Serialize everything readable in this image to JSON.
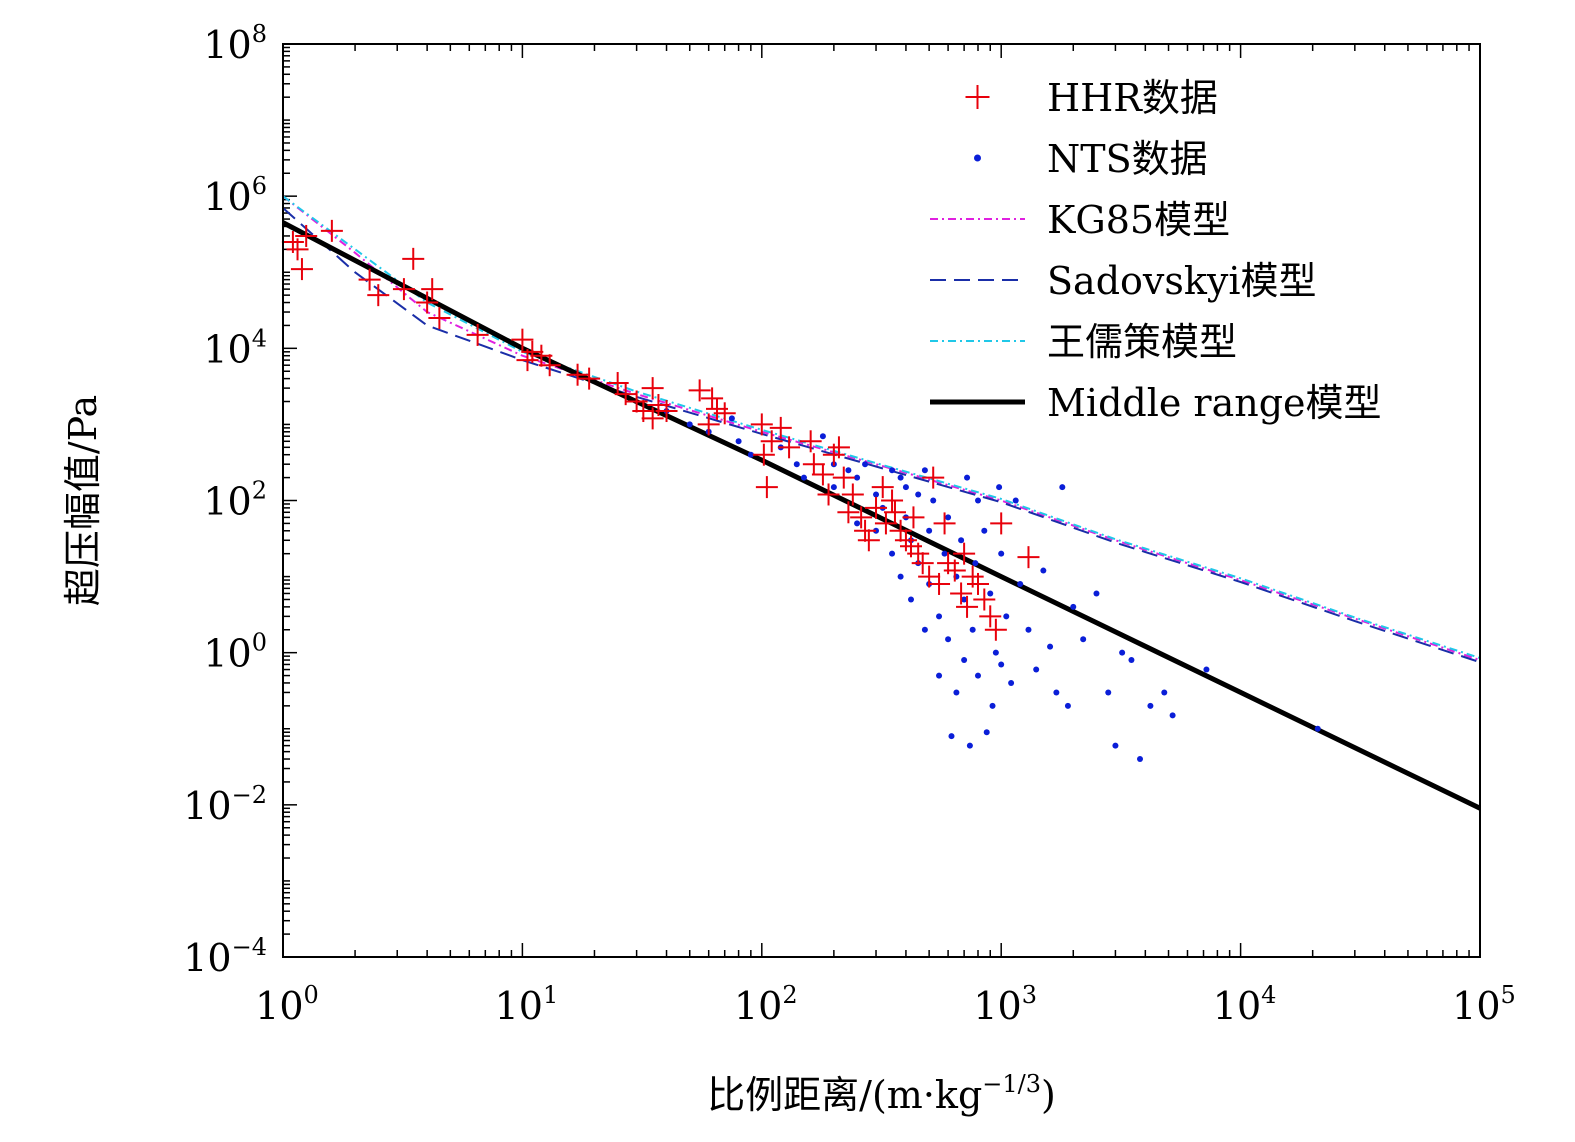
{
  "chart_data": {
    "type": "scatter",
    "xlabel": "比例距离/(m·kg",
    "xlabel_sup": "−1/3",
    "xlabel_tail": ")",
    "ylabel": "超压幅值/Pa",
    "x_scale": "log",
    "y_scale": "log",
    "xlim": [
      1,
      100000
    ],
    "ylim": [
      0.0001,
      100000000
    ],
    "x_ticks": [
      {
        "value": 1,
        "base": "10",
        "exp": "0"
      },
      {
        "value": 10,
        "base": "10",
        "exp": "1"
      },
      {
        "value": 100,
        "base": "10",
        "exp": "2"
      },
      {
        "value": 1000,
        "base": "10",
        "exp": "3"
      },
      {
        "value": 10000,
        "base": "10",
        "exp": "4"
      },
      {
        "value": 100000,
        "base": "10",
        "exp": "5"
      }
    ],
    "y_ticks": [
      {
        "value": 0.0001,
        "base": "10",
        "exp": "−4"
      },
      {
        "value": 0.01,
        "base": "10",
        "exp": "−2"
      },
      {
        "value": 1,
        "base": "10",
        "exp": "0"
      },
      {
        "value": 100,
        "base": "10",
        "exp": "2"
      },
      {
        "value": 10000,
        "base": "10",
        "exp": "4"
      },
      {
        "value": 1000000,
        "base": "10",
        "exp": "6"
      },
      {
        "value": 100000000,
        "base": "10",
        "exp": "8"
      }
    ],
    "grid": false,
    "legend_position": "top-right",
    "series": [
      {
        "name": "HHR数据",
        "kind": "scatter",
        "marker": "plus",
        "color": "#e8000b",
        "points": [
          [
            1.1,
            250000
          ],
          [
            1.15,
            200000
          ],
          [
            1.2,
            110000
          ],
          [
            1.25,
            300000
          ],
          [
            1.6,
            350000
          ],
          [
            2.3,
            80000
          ],
          [
            2.5,
            50000
          ],
          [
            3.2,
            60000
          ],
          [
            3.5,
            150000
          ],
          [
            4.0,
            40000
          ],
          [
            4.2,
            60000
          ],
          [
            4.5,
            25000
          ],
          [
            6.5,
            15000
          ],
          [
            10,
            13000
          ],
          [
            10.5,
            7000
          ],
          [
            11,
            9000
          ],
          [
            12,
            8000
          ],
          [
            13,
            6000
          ],
          [
            17,
            4500
          ],
          [
            19,
            4000
          ],
          [
            25,
            3500
          ],
          [
            27,
            2500
          ],
          [
            30,
            2000
          ],
          [
            32,
            1500
          ],
          [
            35,
            3000
          ],
          [
            35,
            1200
          ],
          [
            37,
            1800
          ],
          [
            40,
            1500
          ],
          [
            55,
            2800
          ],
          [
            60,
            1000
          ],
          [
            62,
            2200
          ],
          [
            65,
            1600
          ],
          [
            70,
            1400
          ],
          [
            100,
            1000
          ],
          [
            102,
            400
          ],
          [
            105,
            150
          ],
          [
            110,
            600
          ],
          [
            120,
            900
          ],
          [
            130,
            500
          ],
          [
            160,
            600
          ],
          [
            165,
            300
          ],
          [
            180,
            220
          ],
          [
            190,
            120
          ],
          [
            200,
            400
          ],
          [
            210,
            500
          ],
          [
            220,
            200
          ],
          [
            230,
            70
          ],
          [
            240,
            120
          ],
          [
            260,
            60
          ],
          [
            270,
            40
          ],
          [
            280,
            30
          ],
          [
            300,
            80
          ],
          [
            320,
            150
          ],
          [
            330,
            50
          ],
          [
            350,
            100
          ],
          [
            360,
            70
          ],
          [
            380,
            40
          ],
          [
            400,
            30
          ],
          [
            420,
            25
          ],
          [
            430,
            60
          ],
          [
            450,
            20
          ],
          [
            470,
            15
          ],
          [
            500,
            10
          ],
          [
            520,
            200
          ],
          [
            550,
            8
          ],
          [
            580,
            50
          ],
          [
            600,
            15
          ],
          [
            640,
            12
          ],
          [
            680,
            6
          ],
          [
            700,
            20
          ],
          [
            720,
            4
          ],
          [
            760,
            10
          ],
          [
            800,
            8
          ],
          [
            850,
            5
          ],
          [
            900,
            3
          ],
          [
            950,
            2
          ],
          [
            1000,
            50
          ],
          [
            1300,
            18
          ]
        ]
      },
      {
        "name": "NTS数据",
        "kind": "scatter",
        "marker": "dot",
        "color": "#0a1ed8",
        "points": [
          [
            40,
            1500
          ],
          [
            50,
            1000
          ],
          [
            60,
            800
          ],
          [
            75,
            1200
          ],
          [
            80,
            600
          ],
          [
            90,
            400
          ],
          [
            120,
            500
          ],
          [
            140,
            300
          ],
          [
            150,
            200
          ],
          [
            180,
            700
          ],
          [
            200,
            300
          ],
          [
            200,
            150
          ],
          [
            230,
            250
          ],
          [
            250,
            200
          ],
          [
            250,
            50
          ],
          [
            270,
            300
          ],
          [
            300,
            120
          ],
          [
            300,
            40
          ],
          [
            320,
            80
          ],
          [
            350,
            250
          ],
          [
            350,
            20
          ],
          [
            380,
            200
          ],
          [
            380,
            10
          ],
          [
            400,
            150
          ],
          [
            400,
            60
          ],
          [
            420,
            30
          ],
          [
            420,
            5
          ],
          [
            450,
            120
          ],
          [
            450,
            15
          ],
          [
            480,
            250
          ],
          [
            480,
            2
          ],
          [
            500,
            40
          ],
          [
            500,
            8
          ],
          [
            520,
            100
          ],
          [
            550,
            3
          ],
          [
            550,
            0.5
          ],
          [
            580,
            20
          ],
          [
            600,
            60
          ],
          [
            600,
            1.5
          ],
          [
            620,
            0.08
          ],
          [
            650,
            10
          ],
          [
            650,
            0.3
          ],
          [
            680,
            30
          ],
          [
            700,
            5
          ],
          [
            700,
            0.8
          ],
          [
            720,
            200
          ],
          [
            740,
            0.06
          ],
          [
            760,
            2
          ],
          [
            780,
            15
          ],
          [
            800,
            0.5
          ],
          [
            800,
            100
          ],
          [
            850,
            40
          ],
          [
            870,
            0.09
          ],
          [
            900,
            6
          ],
          [
            920,
            0.2
          ],
          [
            950,
            1
          ],
          [
            980,
            150
          ],
          [
            1000,
            0.7
          ],
          [
            1000,
            20
          ],
          [
            1050,
            3
          ],
          [
            1100,
            0.4
          ],
          [
            1150,
            100
          ],
          [
            1200,
            8
          ],
          [
            1300,
            2
          ],
          [
            1400,
            0.6
          ],
          [
            1500,
            12
          ],
          [
            1600,
            1.2
          ],
          [
            1700,
            0.3
          ],
          [
            1800,
            150
          ],
          [
            1900,
            0.2
          ],
          [
            2000,
            4
          ],
          [
            2200,
            1.5
          ],
          [
            2500,
            6
          ],
          [
            2800,
            0.3
          ],
          [
            3000,
            0.06
          ],
          [
            3200,
            1
          ],
          [
            3500,
            0.8
          ],
          [
            3800,
            0.04
          ],
          [
            4200,
            0.2
          ],
          [
            4800,
            0.3
          ],
          [
            5200,
            0.15
          ],
          [
            7200,
            0.6
          ],
          [
            21000,
            0.1
          ]
        ]
      },
      {
        "name": "KG85模型",
        "kind": "line",
        "dash": "8,4,2,4",
        "color": "#e020e0",
        "points": [
          [
            1,
            1000000
          ],
          [
            2,
            180000
          ],
          [
            4,
            30000
          ],
          [
            10,
            8000
          ],
          [
            30,
            2500
          ],
          [
            100,
            800
          ],
          [
            300,
            300
          ],
          [
            1000,
            100
          ],
          [
            3000,
            30
          ],
          [
            10000,
            9
          ],
          [
            30000,
            2.8
          ],
          [
            100000,
            0.8
          ]
        ]
      },
      {
        "name": "Sadovskyi模型",
        "kind": "line",
        "dash": "16,8",
        "color": "#1a2ea8",
        "points": [
          [
            1,
            700000
          ],
          [
            2,
            100000
          ],
          [
            4,
            20000
          ],
          [
            10,
            7000
          ],
          [
            30,
            2300
          ],
          [
            100,
            750
          ],
          [
            300,
            280
          ],
          [
            1000,
            95
          ],
          [
            3000,
            28
          ],
          [
            10000,
            8.5
          ],
          [
            30000,
            2.6
          ],
          [
            100000,
            0.75
          ]
        ]
      },
      {
        "name": "王儒策模型",
        "kind": "line",
        "dash": "8,4,2,4",
        "color": "#20c8e8",
        "points": [
          [
            1,
            1000000
          ],
          [
            2,
            200000
          ],
          [
            4,
            40000
          ],
          [
            10,
            9000
          ],
          [
            30,
            2700
          ],
          [
            100,
            850
          ],
          [
            300,
            310
          ],
          [
            1000,
            105
          ],
          [
            3000,
            31
          ],
          [
            10000,
            9.5
          ],
          [
            30000,
            2.9
          ],
          [
            100000,
            0.85
          ]
        ]
      },
      {
        "name": "Middle range模型",
        "kind": "line",
        "dash": "",
        "color": "#000000",
        "points": [
          [
            1,
            450000
          ],
          [
            10,
            10000
          ],
          [
            100,
            340
          ],
          [
            1000,
            10
          ],
          [
            10000,
            0.3
          ],
          [
            100000,
            0.009
          ]
        ]
      }
    ]
  }
}
